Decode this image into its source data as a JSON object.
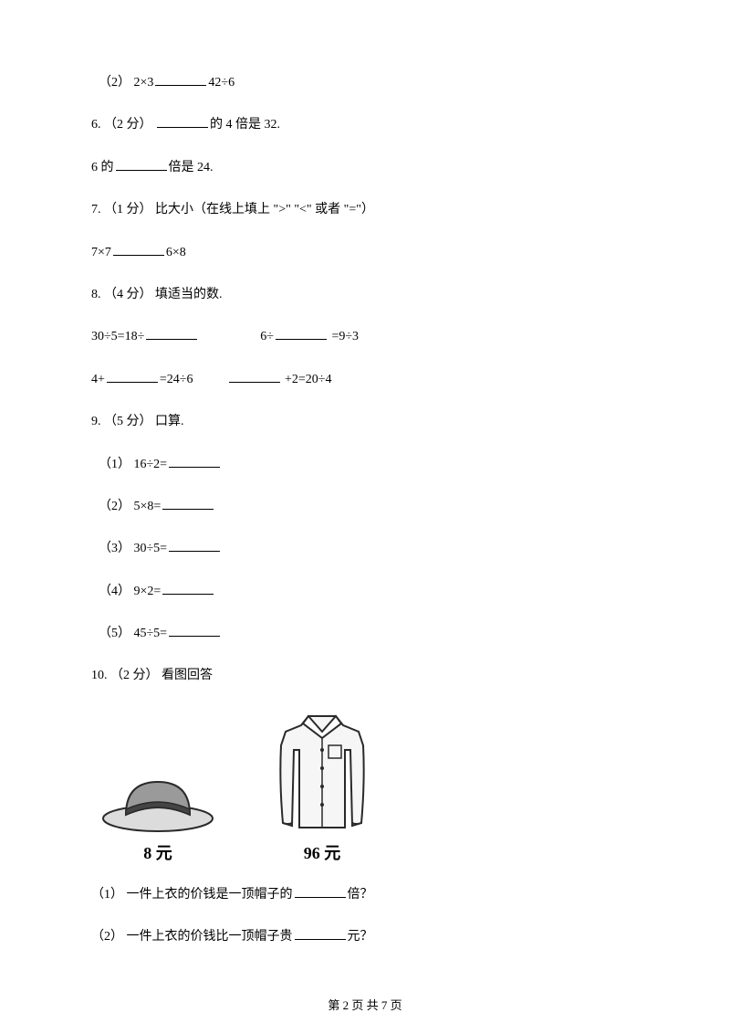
{
  "q5b": "（2） 2×3________42÷6",
  "q6a": "6.  （2 分） ________的 4 倍是 32.",
  "q6b": "6 的________倍是 24.",
  "q7a": "7.  （1 分） 比大小（在线上填上 \">\" \"<\" 或者 \"=\"）",
  "q7b": "7×7________6×8",
  "q8a": "8.  （4 分） 填适当的数.",
  "q8b_left": "30÷5=18÷________",
  "q8b_right": "6÷________ =9÷3",
  "q8c_left": "4+________=24÷6",
  "q8c_right": "________ +2=20÷4",
  "q9a": "9.  （5 分） 口算.",
  "q9_1": "（1） 16÷2=________",
  "q9_2": "（2） 5×8=________",
  "q9_3": "（3） 30÷5=________",
  "q9_4": "（4） 9×2=________",
  "q9_5": "（5） 45÷5=________",
  "q10a": "10.  （2 分） 看图回答",
  "hat_price": "8 元",
  "shirt_price": "96 元",
  "q10_1": "（1） 一件上衣的价钱是一顶帽子的________倍？",
  "q10_2": "（2） 一件上衣的价钱比一顶帽子贵________元？",
  "footer": "第 2 页 共 7 页",
  "colors": {
    "text": "#000000",
    "bg": "#ffffff",
    "hat_fill": "#9a9a9a",
    "shirt_fill": "#f2f2f2",
    "stroke": "#2a2a2a"
  }
}
